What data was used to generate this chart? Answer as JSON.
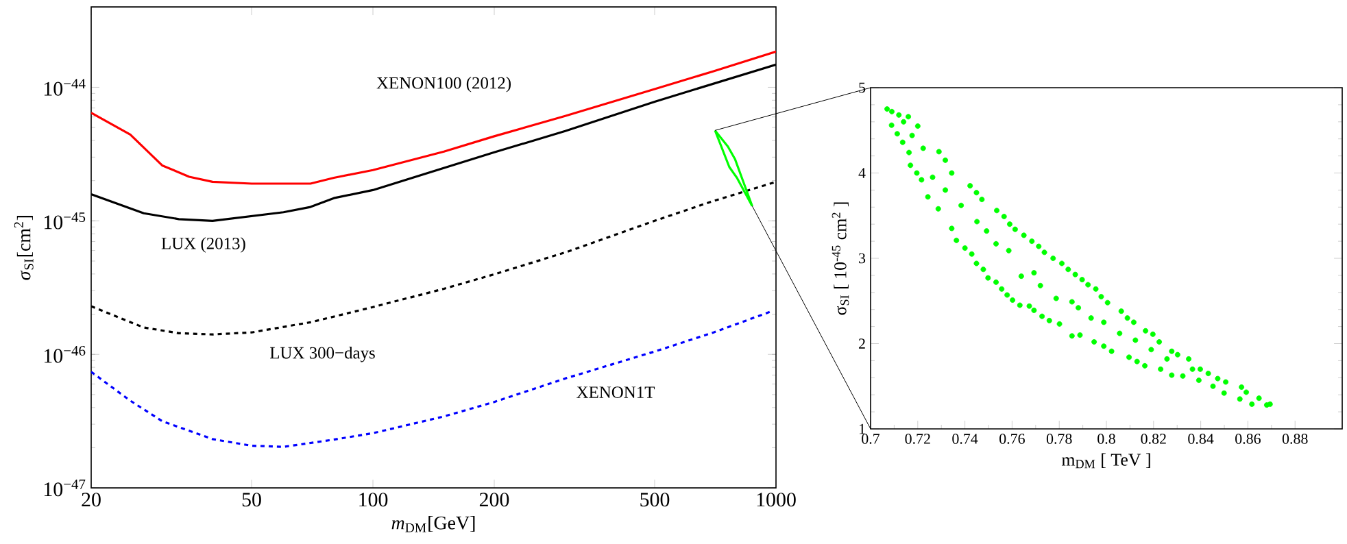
{
  "chart_data": [
    {
      "type": "line",
      "xlabel": "*m*$_{DM}$[GeV]",
      "ylabel": "*σ*$_{SI}$[cm$^{2}$]",
      "log": "xy",
      "xlim": [
        20,
        1000
      ],
      "ylim": [
        1e-47,
        4e-44
      ],
      "xticks": [
        20,
        50,
        100,
        200,
        500,
        1000
      ],
      "yticks": [
        {
          "value": 1e-47,
          "label": "10$^{−47}$"
        },
        {
          "value": 1e-46,
          "label": "10$^{−46}$"
        },
        {
          "value": 1e-45,
          "label": "10$^{−45}$"
        },
        {
          "value": 1e-44,
          "label": "10$^{−44}$"
        }
      ],
      "series": [
        {
          "name": "XENON100 (2012)",
          "color": "#ff0000",
          "line_style": "solid",
          "x": [
            20,
            25,
            30,
            35,
            40,
            50,
            70,
            80,
            100,
            150,
            200,
            300,
            500,
            700,
            1000
          ],
          "values": [
            6.45e-45,
            4.43e-45,
            2.6e-45,
            2.14e-45,
            1.96e-45,
            1.9e-45,
            1.9e-45,
            2.1e-45,
            2.4e-45,
            3.3e-45,
            4.3e-45,
            6.1e-45,
            9.7e-45,
            1.32e-44,
            1.85e-44
          ]
        },
        {
          "name": "LUX (2013)",
          "color": "#000000",
          "line_style": "solid",
          "x": [
            20,
            27,
            33,
            40,
            60,
            70,
            80,
            100,
            200,
            300,
            500,
            1000
          ],
          "values": [
            1.58e-45,
            1.14e-45,
            1.03e-45,
            1e-45,
            1.16e-45,
            1.27e-45,
            1.48e-45,
            1.7e-45,
            3.26e-45,
            4.7e-45,
            7.8e-45,
            1.48e-44
          ]
        },
        {
          "name": "LUX 300−days",
          "color": "#000000",
          "line_style": "dashed",
          "x": [
            20,
            27,
            33,
            40,
            50,
            70,
            100,
            150,
            200,
            300,
            500,
            700,
            1000
          ],
          "values": [
            2.29e-46,
            1.59e-46,
            1.44e-46,
            1.41e-46,
            1.46e-46,
            1.74e-46,
            2.26e-46,
            3.1e-46,
            3.98e-46,
            5.8e-46,
            1e-45,
            1.41e-45,
            1.96e-45
          ]
        },
        {
          "name": "XENON1T",
          "color": "#0000ff",
          "line_style": "dashed",
          "x": [
            20,
            25,
            30,
            40,
            50,
            60,
            80,
            100,
            150,
            200,
            300,
            500,
            700,
            970
          ],
          "values": [
            7.4e-47,
            4.5e-47,
            3.16e-47,
            2.32e-47,
            2.07e-47,
            2.03e-47,
            2.3e-47,
            2.57e-47,
            3.43e-47,
            4.4e-47,
            6.6e-47,
            1.05e-46,
            1.46e-46,
            2.09e-46
          ]
        },
        {
          "color": "#00ff00",
          "line_style": "solid",
          "x": [
            706,
            760,
            791,
            873
          ],
          "values": [
            4.75e-45,
            3.6e-45,
            2.91e-45,
            1.29e-45
          ]
        },
        {
          "color": "#00ff00",
          "line_style": "solid",
          "x": [
            706,
            766,
            800,
            873
          ],
          "values": [
            4.75e-45,
            2.53e-45,
            2.1e-45,
            1.29e-45
          ]
        }
      ]
    },
    {
      "type": "scatter",
      "xlabel": "m$_{DM}$ [ TeV ]",
      "ylabel": "σ$_{SI}$ [ 10$^{-45}$ cm$^{2}$ ]",
      "xlim": [
        0.7,
        0.9
      ],
      "ylim": [
        1,
        5
      ],
      "marker": "circle",
      "xticks": [
        0.7,
        0.72,
        0.74,
        0.76,
        0.78,
        0.8,
        0.82,
        0.84,
        0.86,
        0.88
      ],
      "yticks": [
        1,
        2,
        3,
        4,
        5
      ],
      "series": [
        {
          "color": "#00ff00",
          "x": [
            0.707,
            0.709,
            0.712,
            0.716,
            0.714,
            0.72,
            0.7089,
            0.7113,
            0.7136,
            0.7176,
            0.7163,
            0.7223,
            0.729,
            0.7317,
            0.7344,
            0.7422,
            0.7449,
            0.7472,
            0.7535,
            0.7566,
            0.759,
            0.7613,
            0.765,
            0.7684,
            0.7713,
            0.7737,
            0.7774,
            0.7811,
            0.7838,
            0.7868,
            0.7897,
            0.7922,
            0.7955,
            0.7978,
            0.8005,
            0.8063,
            0.8089,
            0.8116,
            0.8166,
            0.8197,
            0.8224,
            0.8277,
            0.8302,
            0.8349,
            0.8398,
            0.8432,
            0.8472,
            0.8506,
            0.8573,
            0.8593,
            0.8647,
            0.8694,
            0.868,
            0.8617,
            0.8566,
            0.8499,
            0.8452,
            0.8392,
            0.8324,
            0.8277,
            0.823,
            0.8163,
            0.813,
            0.8096,
            0.8022,
            0.7989,
            0.7948,
            0.7888,
            0.7854,
            0.7801,
            0.7758,
            0.7727,
            0.7693,
            0.7673,
            0.7633,
            0.7602,
            0.7579,
            0.7556,
            0.7532,
            0.7498,
            0.7478,
            0.7449,
            0.7429,
            0.74,
            0.7364,
            0.7344,
            0.7287,
            0.7243,
            0.7216,
            0.7196,
            0.7169,
            0.7586,
            0.7639,
            0.772,
            0.7787,
            0.7854,
            0.7935,
            0.7989,
            0.8056,
            0.8123,
            0.819,
            0.7492,
            0.7451,
            0.7384,
            0.7317,
            0.7263,
            0.7532,
            0.7693,
            0.7881,
            0.8257,
            0.8365
          ],
          "values": [
            4.75,
            4.72,
            4.68,
            4.66,
            4.6,
            4.55,
            4.56,
            4.46,
            4.36,
            4.44,
            4.24,
            4.29,
            4.25,
            4.15,
            4.0,
            3.85,
            3.77,
            3.69,
            3.56,
            3.49,
            3.4,
            3.34,
            3.27,
            3.2,
            3.14,
            3.07,
            3.0,
            2.94,
            2.87,
            2.81,
            2.75,
            2.69,
            2.64,
            2.55,
            2.48,
            2.38,
            2.3,
            2.25,
            2.15,
            2.11,
            2.02,
            1.91,
            1.87,
            1.82,
            1.7,
            1.65,
            1.59,
            1.55,
            1.49,
            1.43,
            1.36,
            1.29,
            1.28,
            1.29,
            1.35,
            1.42,
            1.5,
            1.57,
            1.62,
            1.63,
            1.7,
            1.74,
            1.79,
            1.84,
            1.91,
            1.97,
            2.02,
            2.1,
            2.09,
            2.23,
            2.27,
            2.32,
            2.39,
            2.44,
            2.45,
            2.51,
            2.57,
            2.64,
            2.72,
            2.77,
            2.87,
            2.94,
            3.05,
            3.12,
            3.21,
            3.35,
            3.58,
            3.72,
            3.92,
            4.0,
            4.09,
            3.09,
            2.79,
            2.68,
            2.53,
            2.49,
            2.3,
            2.25,
            2.12,
            2.04,
            1.93,
            3.32,
            3.43,
            3.62,
            3.8,
            3.95,
            3.17,
            2.83,
            2.42,
            1.82,
            1.7
          ]
        }
      ]
    }
  ]
}
